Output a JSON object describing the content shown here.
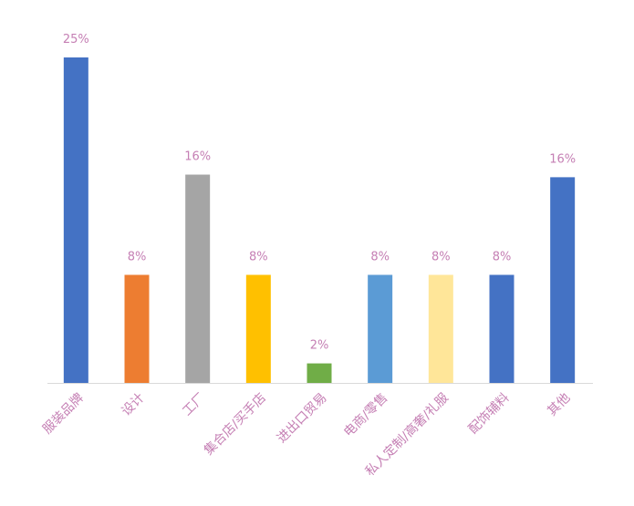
{
  "chart_data": {
    "type": "bar",
    "categories": [
      "服装品牌",
      "设计",
      "工厂",
      "集合店/买手店",
      "进出口贸易",
      "电商/零售",
      "私人定制/高奢/礼服",
      "配饰辅料",
      "其他"
    ],
    "values": [
      25,
      8.3,
      16,
      8.3,
      1.5,
      8.3,
      8.3,
      8.3,
      15.8
    ],
    "value_labels": [
      "25%",
      "8%",
      "16%",
      "8%",
      "2%",
      "8%",
      "8%",
      "8%",
      "16%"
    ],
    "colors": [
      "#4472c4",
      "#ed7d31",
      "#a5a5a5",
      "#ffc000",
      "#70ad47",
      "#5b9bd5",
      "#ffe699",
      "#4472c4",
      "#4472c4"
    ]
  }
}
